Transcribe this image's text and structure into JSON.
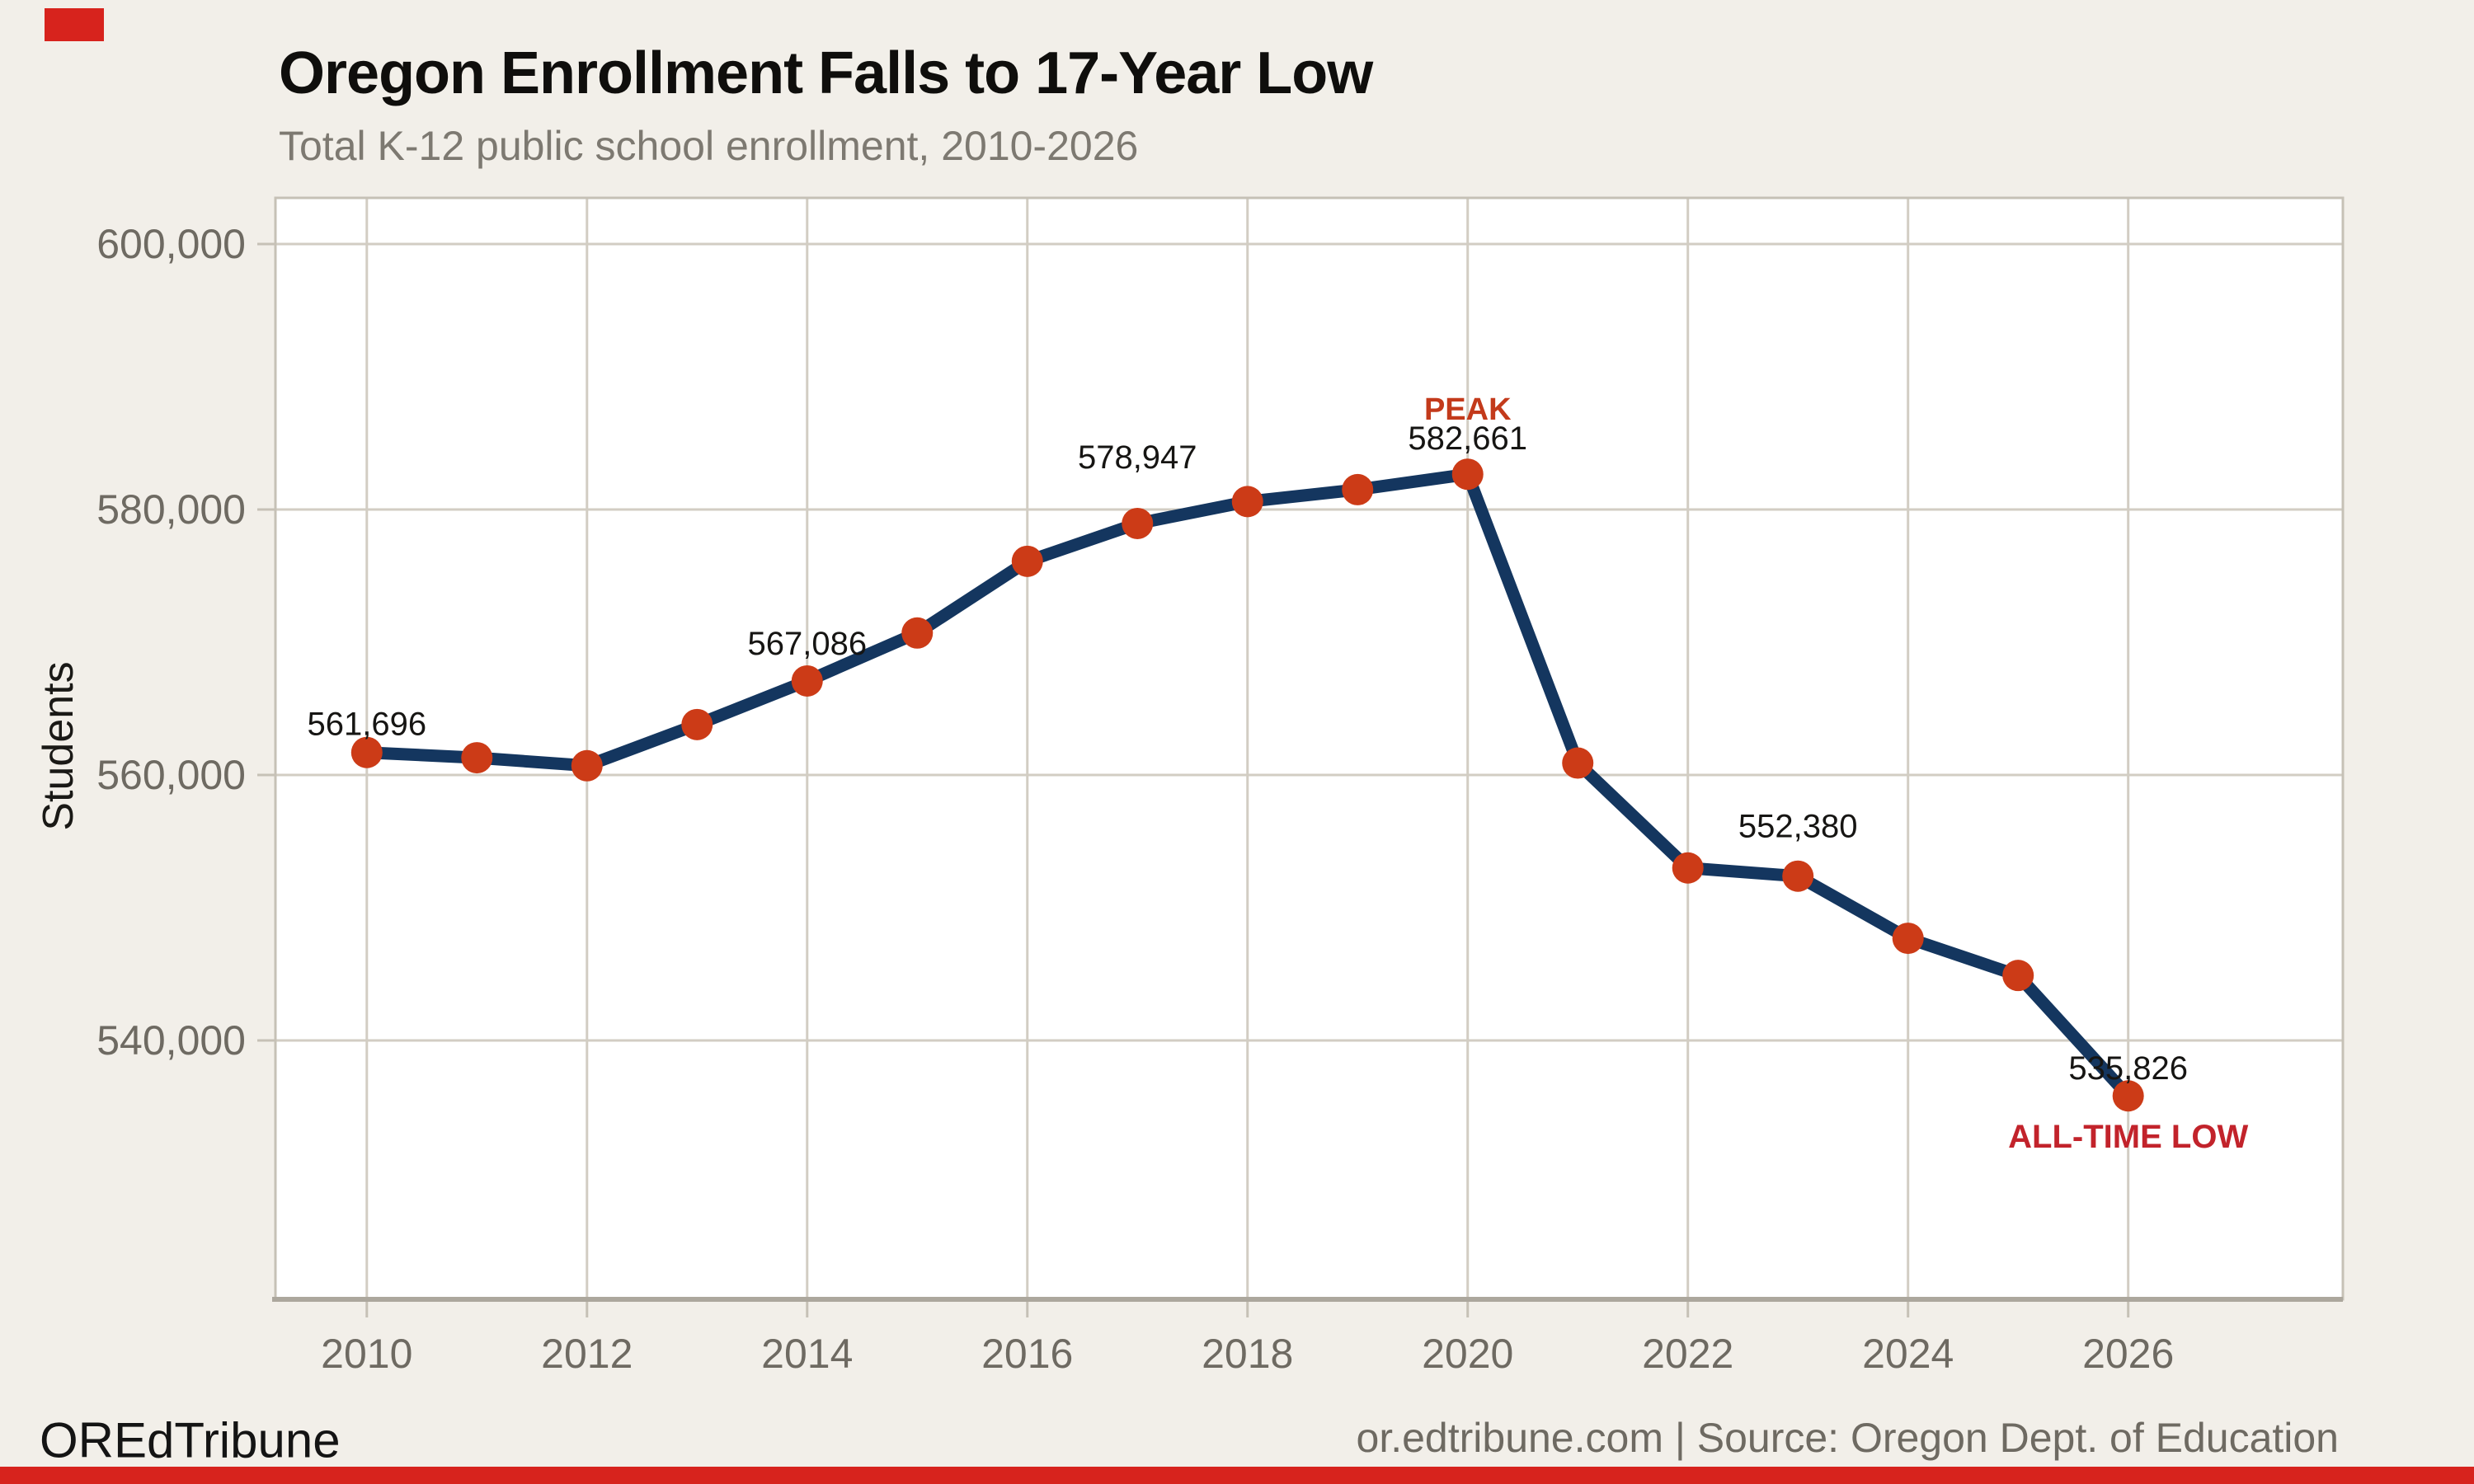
{
  "header": {
    "title": "Oregon Enrollment Falls to 17-Year Low",
    "subtitle": "Total K-12 public school enrollment, 2010-2026"
  },
  "footer": {
    "brand": "OREdTribune",
    "source_line": "or.edtribune.com | Source: Oregon Dept. of Education"
  },
  "colors": {
    "background": "#F2EFE9",
    "plot_background": "#FFFFFF",
    "grid": "#D2CDC3",
    "axis_line": "#ACA79D",
    "tick": "#C6C1B6",
    "axis_text": "#6E6A62",
    "line": "#14365F",
    "point": "#CC3B17",
    "annotation_text": "#161513",
    "peak_label": "#C33A1B",
    "low_label": "#C2232B",
    "brand_red": "#D7231D",
    "title_text": "#0F0E0C",
    "subtitle_text": "#7D7971"
  },
  "chart_data": {
    "type": "line",
    "title": "Oregon Enrollment Falls to 17-Year Low",
    "subtitle": "Total K-12 public school enrollment, 2010-2026",
    "xlabel": "",
    "ylabel": "Students",
    "grid": true,
    "legend": "none",
    "x": [
      2010,
      2011,
      2012,
      2013,
      2014,
      2015,
      2016,
      2017,
      2018,
      2019,
      2020,
      2021,
      2022,
      2023,
      2024,
      2025,
      2026
    ],
    "series": [
      {
        "name": "Total K-12 public school enrollment",
        "values": [
          561696,
          561300,
          560700,
          563800,
          567086,
          570700,
          576100,
          578947,
          580600,
          581500,
          582661,
          560900,
          553000,
          552380,
          547700,
          544900,
          535826
        ]
      }
    ],
    "xlim": [
      2009.17,
      2027.95
    ],
    "ylim": [
      520500,
      603480
    ],
    "x_ticks": {
      "values": [
        2010,
        2012,
        2014,
        2016,
        2018,
        2020,
        2022,
        2024,
        2026
      ],
      "labels": [
        "2010",
        "2012",
        "2014",
        "2016",
        "2018",
        "2020",
        "2022",
        "2024",
        "2026"
      ]
    },
    "y_ticks": {
      "values": [
        600000,
        580000,
        560000,
        540000
      ],
      "labels": [
        "600,000",
        "580,000",
        "560,000",
        "540,000"
      ]
    },
    "annotations": [
      {
        "id": "a2010",
        "year": 2010,
        "value": 561696,
        "text": "561,696",
        "kind": "value"
      },
      {
        "id": "a2014",
        "year": 2014,
        "value": 567086,
        "text": "567,086",
        "kind": "value"
      },
      {
        "id": "a2017",
        "year": 2017,
        "value": 578947,
        "text": "578,947",
        "kind": "value"
      },
      {
        "id": "peak",
        "year": 2020,
        "value": 582661,
        "text": "PEAK",
        "kind": "peak"
      },
      {
        "id": "a2020",
        "year": 2020,
        "value": 582661,
        "text": "582,661",
        "kind": "value"
      },
      {
        "id": "a2023",
        "year": 2023,
        "value": 552380,
        "text": "552,380",
        "kind": "value"
      },
      {
        "id": "a2026",
        "year": 2026,
        "value": 535826,
        "text": "535,826",
        "kind": "value"
      },
      {
        "id": "low",
        "year": 2026,
        "value": 535826,
        "text": "ALL-TIME LOW",
        "kind": "low"
      }
    ]
  }
}
